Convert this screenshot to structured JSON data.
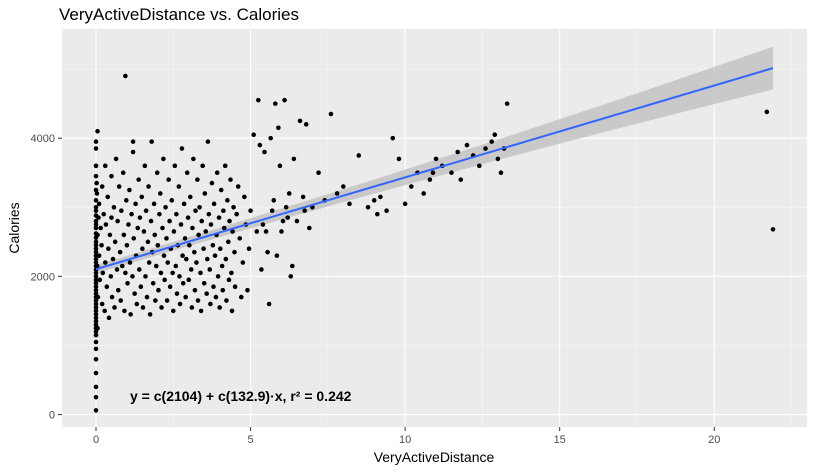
{
  "chart_data": {
    "type": "scatter",
    "title": "VeryActiveDistance vs. Calories",
    "xlabel": "VeryActiveDistance",
    "ylabel": "Calories",
    "xlim": [
      -1.1,
      23.0
    ],
    "ylim": [
      -180,
      5580
    ],
    "x_ticks": [
      0,
      5,
      10,
      15,
      20
    ],
    "y_ticks": [
      0,
      2000,
      4000
    ],
    "grid": true,
    "annotation": {
      "text": "y = c(2104) + c(132.9)·x,  r² = 0.242",
      "x": 1.1,
      "y": 270
    },
    "regression": {
      "intercept": 2104,
      "slope": 132.9,
      "r2": 0.242,
      "x_range": [
        0,
        21.9
      ],
      "band_halfwidth_start": 60,
      "band_halfwidth_end": 310
    },
    "colors": {
      "panel": "#ebebeb",
      "grid_major": "#ffffff",
      "points": "#000000",
      "line": "#3366ff",
      "band": "#bdbdbd"
    },
    "points": [
      [
        0.0,
        3250
      ],
      [
        0.0,
        3100
      ],
      [
        0.0,
        3000
      ],
      [
        0.0,
        2950
      ],
      [
        0.0,
        2880
      ],
      [
        0.0,
        2800
      ],
      [
        0.0,
        2750
      ],
      [
        0.0,
        2700
      ],
      [
        0.0,
        2620
      ],
      [
        0.0,
        2560
      ],
      [
        0.0,
        2500
      ],
      [
        0.0,
        2450
      ],
      [
        0.0,
        2400
      ],
      [
        0.0,
        2350
      ],
      [
        0.0,
        2300
      ],
      [
        0.0,
        2250
      ],
      [
        0.0,
        2200
      ],
      [
        0.0,
        2150
      ],
      [
        0.0,
        2100
      ],
      [
        0.0,
        2050
      ],
      [
        0.0,
        2000
      ],
      [
        0.0,
        1950
      ],
      [
        0.0,
        1900
      ],
      [
        0.0,
        1850
      ],
      [
        0.0,
        1800
      ],
      [
        0.0,
        1750
      ],
      [
        0.0,
        1700
      ],
      [
        0.0,
        1650
      ],
      [
        0.0,
        1600
      ],
      [
        0.0,
        1550
      ],
      [
        0.0,
        1500
      ],
      [
        0.0,
        1450
      ],
      [
        0.0,
        1400
      ],
      [
        0.0,
        1350
      ],
      [
        0.0,
        1300
      ],
      [
        0.0,
        1250
      ],
      [
        0.0,
        1200
      ],
      [
        0.0,
        1150
      ],
      [
        0.0,
        1050
      ],
      [
        0.0,
        950
      ],
      [
        0.0,
        800
      ],
      [
        0.0,
        600
      ],
      [
        0.0,
        400
      ],
      [
        0.0,
        250
      ],
      [
        0.0,
        60
      ],
      [
        0.0,
        3850
      ],
      [
        0.0,
        3950
      ],
      [
        0.05,
        4100
      ],
      [
        0.0,
        3450
      ],
      [
        0.0,
        3600
      ],
      [
        0.02,
        3350
      ],
      [
        0.03,
        3200
      ],
      [
        0.04,
        2150
      ],
      [
        0.05,
        2600
      ],
      [
        0.06,
        1700
      ],
      [
        0.08,
        2850
      ],
      [
        0.1,
        2300
      ],
      [
        0.12,
        1950
      ],
      [
        0.05,
        1250
      ],
      [
        0.1,
        3050
      ],
      [
        0.15,
        2700
      ],
      [
        0.18,
        2450
      ],
      [
        0.2,
        1600
      ],
      [
        0.2,
        3300
      ],
      [
        0.22,
        2050
      ],
      [
        0.25,
        2900
      ],
      [
        0.28,
        1500
      ],
      [
        0.3,
        2200
      ],
      [
        0.3,
        3600
      ],
      [
        0.32,
        2750
      ],
      [
        0.35,
        1850
      ],
      [
        0.38,
        3150
      ],
      [
        0.4,
        2400
      ],
      [
        0.42,
        1400
      ],
      [
        0.45,
        2600
      ],
      [
        0.48,
        2000
      ],
      [
        0.5,
        3450
      ],
      [
        0.5,
        2850
      ],
      [
        0.52,
        1700
      ],
      [
        0.55,
        2250
      ],
      [
        0.58,
        3000
      ],
      [
        0.6,
        1550
      ],
      [
        0.62,
        2500
      ],
      [
        0.65,
        3700
      ],
      [
        0.68,
        2100
      ],
      [
        0.7,
        2800
      ],
      [
        0.72,
        1800
      ],
      [
        0.75,
        3300
      ],
      [
        0.78,
        2350
      ],
      [
        0.8,
        1650
      ],
      [
        0.82,
        2950
      ],
      [
        0.85,
        2150
      ],
      [
        0.88,
        3500
      ],
      [
        0.9,
        2600
      ],
      [
        0.92,
        1500
      ],
      [
        0.95,
        2050
      ],
      [
        0.98,
        3100
      ],
      [
        1.0,
        2450
      ],
      [
        1.02,
        1900
      ],
      [
        1.05,
        2750
      ],
      [
        1.08,
        3250
      ],
      [
        1.1,
        2200
      ],
      [
        1.12,
        1450
      ],
      [
        1.15,
        2900
      ],
      [
        1.18,
        2000
      ],
      [
        1.2,
        3800
      ],
      [
        1.22,
        2550
      ],
      [
        1.25,
        1750
      ],
      [
        1.28,
        3050
      ],
      [
        1.3,
        2300
      ],
      [
        1.32,
        1600
      ],
      [
        1.35,
        2700
      ],
      [
        1.38,
        3400
      ],
      [
        1.4,
        2100
      ],
      [
        1.42,
        2850
      ],
      [
        1.45,
        1850
      ],
      [
        1.48,
        3150
      ],
      [
        1.5,
        2400
      ],
      [
        1.52,
        1550
      ],
      [
        1.55,
        2650
      ],
      [
        1.58,
        3600
      ],
      [
        1.6,
        2000
      ],
      [
        1.62,
        2950
      ],
      [
        1.65,
        1700
      ],
      [
        1.68,
        2500
      ],
      [
        1.7,
        3300
      ],
      [
        1.72,
        2200
      ],
      [
        1.75,
        1450
      ],
      [
        1.78,
        2800
      ],
      [
        1.8,
        3950
      ],
      [
        1.82,
        2350
      ],
      [
        1.85,
        1900
      ],
      [
        1.88,
        3050
      ],
      [
        1.9,
        2600
      ],
      [
        1.92,
        1650
      ],
      [
        1.95,
        2150
      ],
      [
        1.98,
        3500
      ],
      [
        2.0,
        2450
      ],
      [
        2.02,
        1800
      ],
      [
        2.05,
        2900
      ],
      [
        2.08,
        3200
      ],
      [
        2.1,
        2050
      ],
      [
        2.12,
        1550
      ],
      [
        2.15,
        2700
      ],
      [
        2.18,
        3700
      ],
      [
        2.2,
        2300
      ],
      [
        2.22,
        1950
      ],
      [
        2.25,
        3000
      ],
      [
        2.28,
        2550
      ],
      [
        2.3,
        1650
      ],
      [
        2.32,
        2200
      ],
      [
        2.35,
        3400
      ],
      [
        2.38,
        2800
      ],
      [
        2.4,
        1850
      ],
      [
        2.42,
        2400
      ],
      [
        2.45,
        3100
      ],
      [
        2.48,
        2050
      ],
      [
        2.5,
        1500
      ],
      [
        2.52,
        2650
      ],
      [
        2.55,
        3600
      ],
      [
        2.58,
        2150
      ],
      [
        2.6,
        2900
      ],
      [
        2.62,
        1750
      ],
      [
        2.65,
        2450
      ],
      [
        2.68,
        3300
      ],
      [
        2.7,
        2000
      ],
      [
        2.72,
        1600
      ],
      [
        2.75,
        2750
      ],
      [
        2.78,
        3850
      ],
      [
        2.8,
        2300
      ],
      [
        2.82,
        1900
      ],
      [
        2.85,
        3050
      ],
      [
        2.88,
        2550
      ],
      [
        2.9,
        1700
      ],
      [
        2.92,
        2250
      ],
      [
        2.95,
        3500
      ],
      [
        2.98,
        2850
      ],
      [
        3.0,
        1950
      ],
      [
        3.02,
        2450
      ],
      [
        3.05,
        3150
      ],
      [
        3.08,
        2100
      ],
      [
        3.1,
        1550
      ],
      [
        3.12,
        2700
      ],
      [
        3.15,
        3700
      ],
      [
        3.18,
        2350
      ],
      [
        3.2,
        1800
      ],
      [
        3.22,
        2950
      ],
      [
        3.25,
        2200
      ],
      [
        3.28,
        3400
      ],
      [
        3.3,
        1650
      ],
      [
        3.32,
        2600
      ],
      [
        3.35,
        3000
      ],
      [
        3.38,
        2050
      ],
      [
        3.4,
        1500
      ],
      [
        3.42,
        2800
      ],
      [
        3.45,
        3600
      ],
      [
        3.48,
        2400
      ],
      [
        3.5,
        1900
      ],
      [
        3.52,
        3200
      ],
      [
        3.55,
        2650
      ],
      [
        3.58,
        1750
      ],
      [
        3.6,
        2250
      ],
      [
        3.62,
        3950
      ],
      [
        3.65,
        2900
      ],
      [
        3.68,
        2100
      ],
      [
        3.7,
        1600
      ],
      [
        3.72,
        2750
      ],
      [
        3.75,
        3350
      ],
      [
        3.78,
        2450
      ],
      [
        3.8,
        1850
      ],
      [
        3.82,
        3050
      ],
      [
        3.85,
        2300
      ],
      [
        3.88,
        1700
      ],
      [
        3.9,
        2600
      ],
      [
        3.92,
        3500
      ],
      [
        3.95,
        2000
      ],
      [
        3.98,
        2850
      ],
      [
        4.0,
        1550
      ],
      [
        4.02,
        2400
      ],
      [
        4.05,
        3250
      ],
      [
        4.08,
        2150
      ],
      [
        4.1,
        1800
      ],
      [
        4.12,
        2950
      ],
      [
        4.15,
        2700
      ],
      [
        4.18,
        3600
      ],
      [
        4.2,
        2250
      ],
      [
        4.22,
        1650
      ],
      [
        4.25,
        3100
      ],
      [
        4.28,
        2500
      ],
      [
        4.3,
        1950
      ],
      [
        4.32,
        2800
      ],
      [
        4.35,
        3400
      ],
      [
        4.38,
        2050
      ],
      [
        4.4,
        1500
      ],
      [
        4.42,
        2650
      ],
      [
        4.45,
        3000
      ],
      [
        4.48,
        2350
      ],
      [
        4.5,
        1850
      ],
      [
        4.55,
        2900
      ],
      [
        4.6,
        3300
      ],
      [
        4.65,
        2550
      ],
      [
        4.7,
        1700
      ],
      [
        4.75,
        2200
      ],
      [
        4.8,
        3150
      ],
      [
        4.85,
        2750
      ],
      [
        4.9,
        1800
      ],
      [
        4.95,
        2400
      ],
      [
        5.0,
        2950
      ],
      [
        0.95,
        4900
      ],
      [
        1.2,
        3950
      ],
      [
        5.1,
        4050
      ],
      [
        5.2,
        2650
      ],
      [
        5.25,
        4550
      ],
      [
        5.3,
        3900
      ],
      [
        5.35,
        2100
      ],
      [
        5.4,
        2750
      ],
      [
        5.45,
        3800
      ],
      [
        5.5,
        2650
      ],
      [
        5.55,
        2350
      ],
      [
        5.6,
        1600
      ],
      [
        5.65,
        4000
      ],
      [
        5.7,
        2950
      ],
      [
        5.75,
        3100
      ],
      [
        5.8,
        4500
      ],
      [
        5.85,
        2300
      ],
      [
        5.9,
        4150
      ],
      [
        5.95,
        3600
      ],
      [
        6.0,
        2650
      ],
      [
        6.05,
        2800
      ],
      [
        6.1,
        4550
      ],
      [
        6.15,
        3000
      ],
      [
        6.2,
        2850
      ],
      [
        6.25,
        3200
      ],
      [
        6.3,
        2000
      ],
      [
        6.35,
        2150
      ],
      [
        6.4,
        3700
      ],
      [
        6.5,
        2800
      ],
      [
        6.6,
        4250
      ],
      [
        6.7,
        3150
      ],
      [
        6.75,
        2950
      ],
      [
        6.8,
        4200
      ],
      [
        6.9,
        2700
      ],
      [
        7.0,
        3000
      ],
      [
        7.2,
        3500
      ],
      [
        7.4,
        3100
      ],
      [
        7.6,
        4350
      ],
      [
        7.8,
        3200
      ],
      [
        8.0,
        3300
      ],
      [
        8.2,
        3050
      ],
      [
        8.5,
        3750
      ],
      [
        8.8,
        3000
      ],
      [
        9.0,
        3100
      ],
      [
        9.2,
        3150
      ],
      [
        9.4,
        2950
      ],
      [
        9.6,
        4000
      ],
      [
        9.8,
        3700
      ],
      [
        10.0,
        3050
      ],
      [
        10.2,
        3300
      ],
      [
        10.4,
        3500
      ],
      [
        10.6,
        3200
      ],
      [
        10.8,
        3400
      ],
      [
        11.0,
        3700
      ],
      [
        11.2,
        3600
      ],
      [
        11.5,
        3500
      ],
      [
        11.8,
        3400
      ],
      [
        12.0,
        3900
      ],
      [
        12.2,
        3750
      ],
      [
        12.4,
        3600
      ],
      [
        12.6,
        3850
      ],
      [
        12.8,
        3950
      ],
      [
        13.0,
        3700
      ],
      [
        13.1,
        3500
      ],
      [
        13.2,
        3850
      ],
      [
        13.3,
        4500
      ],
      [
        21.7,
        4380
      ],
      [
        21.9,
        2680
      ],
      [
        9.1,
        2900
      ],
      [
        10.9,
        3500
      ],
      [
        12.9,
        4050
      ],
      [
        11.7,
        3800
      ]
    ]
  }
}
